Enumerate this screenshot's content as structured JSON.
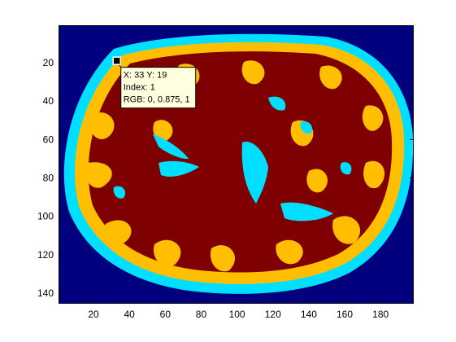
{
  "chart_data": {
    "type": "heatmap",
    "title": "",
    "xlabel": "",
    "ylabel": "",
    "xlim": [
      0.5,
      198.5
    ],
    "ylim": [
      0.5,
      145.5
    ],
    "y_direction": "reverse",
    "x_ticks": [
      20,
      40,
      60,
      80,
      100,
      120,
      140,
      160,
      180
    ],
    "y_ticks": [
      20,
      40,
      60,
      80,
      100,
      120,
      140
    ],
    "x_tick_labels": [
      "20",
      "40",
      "60",
      "80",
      "100",
      "120",
      "140",
      "160",
      "180"
    ],
    "y_tick_labels": [
      "20",
      "40",
      "60",
      "80",
      "100",
      "120",
      "140"
    ],
    "colormap": {
      "background": "#00007f",
      "csf": "#00dfff",
      "gray_matter": "#ffbf00",
      "white_matter": "#7f0000"
    },
    "datatip": {
      "x": 33,
      "y": 19,
      "index": 1,
      "rgb": [
        0,
        0.875,
        1
      ],
      "line1": "X: 33 Y: 19",
      "line2": "Index: 1",
      "line3": "RGB: 0, 0.875, 1"
    }
  }
}
